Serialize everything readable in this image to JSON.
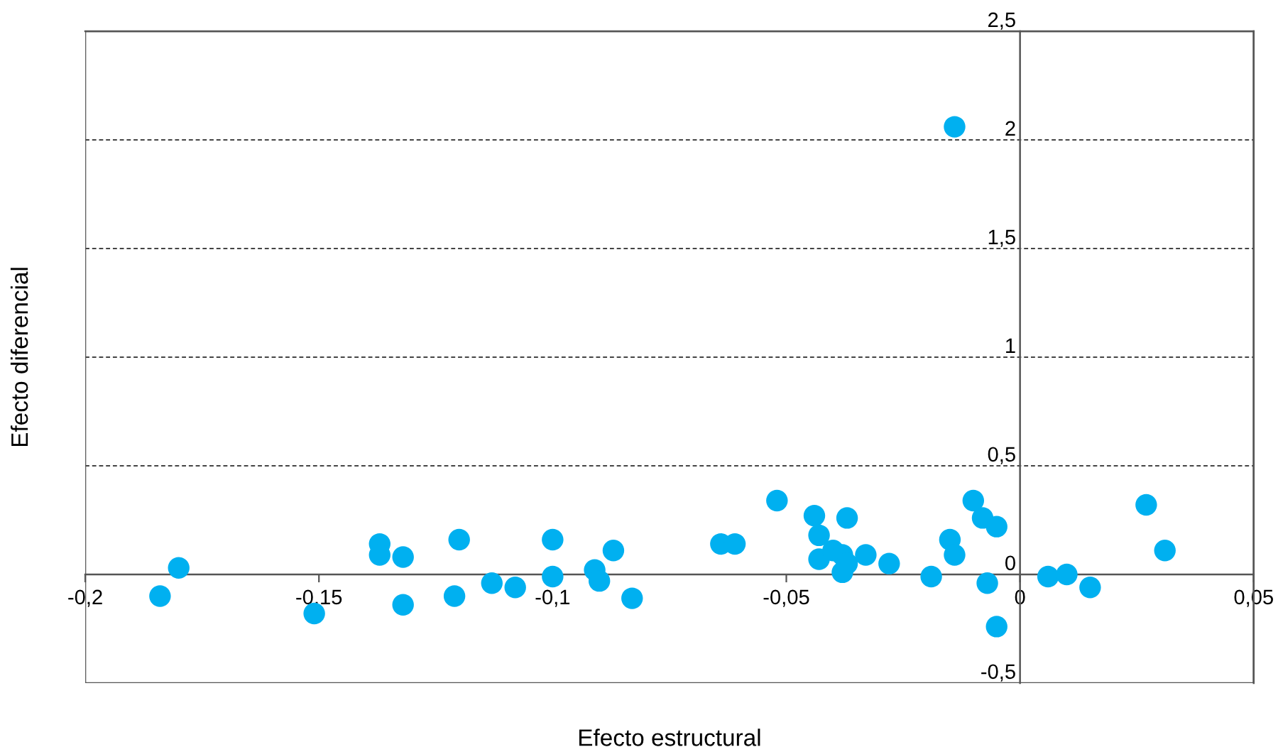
{
  "chart_data": {
    "type": "scatter",
    "xlabel": "Efecto estructural",
    "ylabel": "Efecto diferencial",
    "x": [
      -0.184,
      -0.18,
      -0.151,
      -0.137,
      -0.137,
      -0.132,
      -0.132,
      -0.12,
      -0.121,
      -0.113,
      -0.108,
      -0.1,
      -0.1,
      -0.091,
      -0.09,
      -0.087,
      -0.083,
      -0.064,
      -0.061,
      -0.052,
      -0.044,
      -0.043,
      -0.043,
      -0.04,
      -0.038,
      -0.037,
      -0.038,
      -0.037,
      -0.033,
      -0.028,
      -0.019,
      -0.015,
      -0.014,
      -0.014,
      -0.01,
      -0.008,
      -0.005,
      -0.007,
      -0.005,
      0.006,
      0.01,
      0.015,
      0.027,
      0.031
    ],
    "series": [
      {
        "color": "#00b0f0",
        "values": [
          -0.1,
          0.03,
          -0.18,
          0.14,
          0.09,
          0.08,
          -0.14,
          0.16,
          -0.1,
          -0.04,
          -0.06,
          0.16,
          -0.01,
          0.02,
          -0.03,
          0.11,
          -0.11,
          0.14,
          0.14,
          0.34,
          0.27,
          0.18,
          0.07,
          0.11,
          0.01,
          0.26,
          0.09,
          0.05,
          0.09,
          0.05,
          -0.01,
          0.16,
          0.09,
          2.06,
          0.34,
          0.26,
          0.22,
          -0.04,
          -0.24,
          -0.01,
          0.0,
          -0.06,
          0.32,
          0.11
        ]
      }
    ],
    "xlim": [
      -0.2,
      0.05
    ],
    "ylim": [
      -0.5,
      2.5
    ],
    "xticks": [
      {
        "value": -0.2,
        "label": "-0,2"
      },
      {
        "value": -0.15,
        "label": "-0,15"
      },
      {
        "value": -0.1,
        "label": "-0,1"
      },
      {
        "value": -0.05,
        "label": "-0,05"
      },
      {
        "value": 0,
        "label": "0"
      },
      {
        "value": 0.05,
        "label": "0,05"
      }
    ],
    "yticks": [
      {
        "value": -0.5,
        "label": "-0,5"
      },
      {
        "value": 0,
        "label": "0"
      },
      {
        "value": 0.5,
        "label": "0,5"
      },
      {
        "value": 1,
        "label": "1"
      },
      {
        "value": 1.5,
        "label": "1,5"
      },
      {
        "value": 2,
        "label": "2"
      },
      {
        "value": 2.5,
        "label": "2,5"
      }
    ],
    "grid": "y",
    "marker": "circle",
    "legend": false
  }
}
